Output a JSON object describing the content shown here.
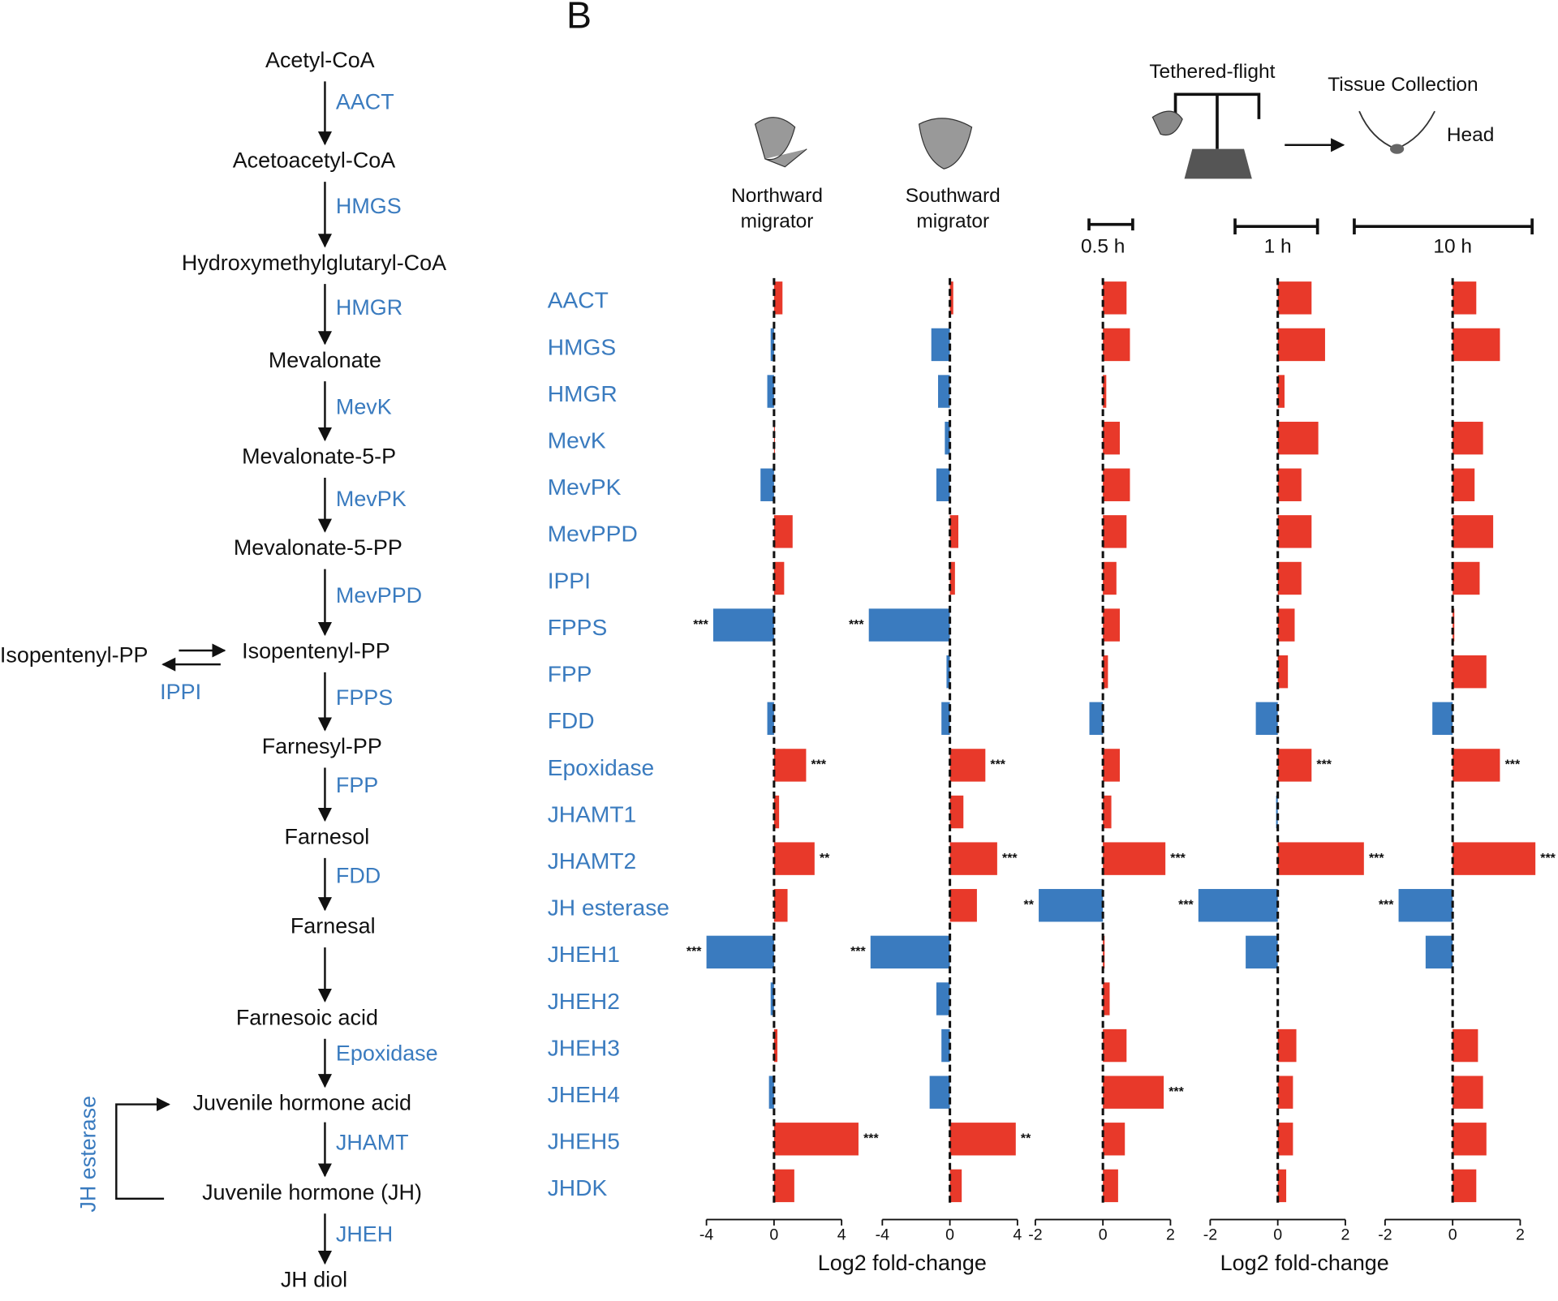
{
  "panel_letter": "B",
  "pathway": {
    "compounds": [
      "Acetyl-CoA",
      "Acetoacetyl-CoA",
      "Hydroxymethylglutaryl-CoA",
      "Mevalonate",
      "Mevalonate-5-P",
      "Mevalonate-5-PP",
      "Isopentenyl-PP",
      "Farnesyl-PP",
      "Farnesol",
      "Farnesal",
      "Farnesoic acid",
      "Juvenile hormone acid",
      "Juvenile hormone (JH)",
      "JH diol"
    ],
    "enzymes": [
      "AACT",
      "HMGS",
      "HMGR",
      "MevK",
      "MevPK",
      "MevPPD",
      "FPPS",
      "FPP",
      "FDD",
      "Epoxidase",
      "JHAMT",
      "JHEH"
    ],
    "side_compound": "Isopentenyl-PP",
    "side_enzyme": "IPPI",
    "loop_enzyme": "JH esterase"
  },
  "experiment": {
    "tethered": "Tethered-flight",
    "collection": "Tissue Collection",
    "tissue": "Head"
  },
  "chart_data": {
    "type": "bar",
    "orientation": "horizontal",
    "colors": {
      "positive": "#e8392a",
      "negative": "#3a7bbf"
    },
    "categories": [
      "AACT",
      "HMGS",
      "HMGR",
      "MevK",
      "MevPK",
      "MevPPD",
      "IPPI",
      "FPPS",
      "FPP",
      "FDD",
      "Epoxidase",
      "JHAMT1",
      "JHAMT2",
      "JH esterase",
      "JHEH1",
      "JHEH2",
      "JHEH3",
      "JHEH4",
      "JHEH5",
      "JHDK"
    ],
    "xlabels": [
      "Log2 fold-change",
      "Log2 fold-change"
    ],
    "panels": [
      {
        "title": [
          "Northward",
          "migrator"
        ],
        "xlim": [
          -4,
          4
        ],
        "xticks": [
          -4,
          0,
          4
        ],
        "values": [
          0.5,
          -0.2,
          -0.4,
          0.05,
          -0.8,
          1.1,
          0.6,
          -3.6,
          0,
          -0.4,
          1.9,
          0.3,
          2.4,
          0.8,
          -4.0,
          -0.2,
          0.2,
          -0.3,
          5.0,
          1.2
        ],
        "significance": [
          null,
          null,
          null,
          null,
          null,
          null,
          null,
          "***",
          null,
          null,
          "***",
          null,
          "**",
          null,
          "***",
          null,
          null,
          null,
          "***",
          null
        ]
      },
      {
        "title": [
          "Southward",
          "migrator"
        ],
        "xlim": [
          -4,
          4
        ],
        "xticks": [
          -4,
          0,
          4
        ],
        "values": [
          0.2,
          -1.1,
          -0.7,
          -0.3,
          -0.8,
          0.5,
          0.3,
          -4.8,
          -0.2,
          -0.5,
          2.1,
          0.8,
          2.8,
          1.6,
          -4.7,
          -0.8,
          -0.5,
          -1.2,
          3.9,
          0.7
        ],
        "significance": [
          null,
          null,
          null,
          null,
          null,
          null,
          null,
          "***",
          null,
          null,
          "***",
          null,
          "***",
          null,
          "***",
          null,
          null,
          null,
          "**",
          null
        ]
      },
      {
        "title": [
          "0.5 h"
        ],
        "xlim": [
          -2,
          2
        ],
        "xticks": [
          -2,
          0,
          2
        ],
        "values": [
          0.7,
          0.8,
          0.1,
          0.5,
          0.8,
          0.7,
          0.4,
          0.5,
          0.15,
          -0.4,
          0.5,
          0.25,
          1.85,
          -1.9,
          0.05,
          0.2,
          0.7,
          1.8,
          0.65,
          0.45
        ],
        "significance": [
          null,
          null,
          null,
          null,
          null,
          null,
          null,
          null,
          null,
          null,
          null,
          null,
          "***",
          "**",
          null,
          null,
          null,
          "***",
          null,
          null
        ]
      },
      {
        "title": [
          "1 h"
        ],
        "xlim": [
          -2,
          2
        ],
        "xticks": [
          -2,
          0,
          2
        ],
        "values": [
          1.0,
          1.4,
          0.2,
          1.2,
          0.7,
          1.0,
          0.7,
          0.5,
          0.3,
          -0.65,
          1.0,
          -0.05,
          2.55,
          -2.35,
          -0.95,
          0,
          0.55,
          0.45,
          0.45,
          0.25
        ],
        "significance": [
          null,
          null,
          null,
          null,
          null,
          null,
          null,
          null,
          null,
          null,
          "***",
          null,
          "***",
          "***",
          null,
          null,
          null,
          null,
          null,
          null
        ]
      },
      {
        "title": [
          "10 h"
        ],
        "xlim": [
          -2,
          2
        ],
        "xticks": [
          -2,
          0,
          2
        ],
        "values": [
          0.7,
          1.4,
          0,
          0.9,
          0.65,
          1.2,
          0.8,
          0.05,
          1.0,
          -0.6,
          1.4,
          0,
          2.45,
          -1.6,
          -0.8,
          0,
          0.75,
          0.9,
          1.0,
          0.7
        ],
        "significance": [
          null,
          null,
          null,
          null,
          null,
          null,
          null,
          null,
          null,
          null,
          "***",
          null,
          "***",
          "***",
          null,
          null,
          null,
          null,
          null,
          null
        ]
      }
    ]
  }
}
